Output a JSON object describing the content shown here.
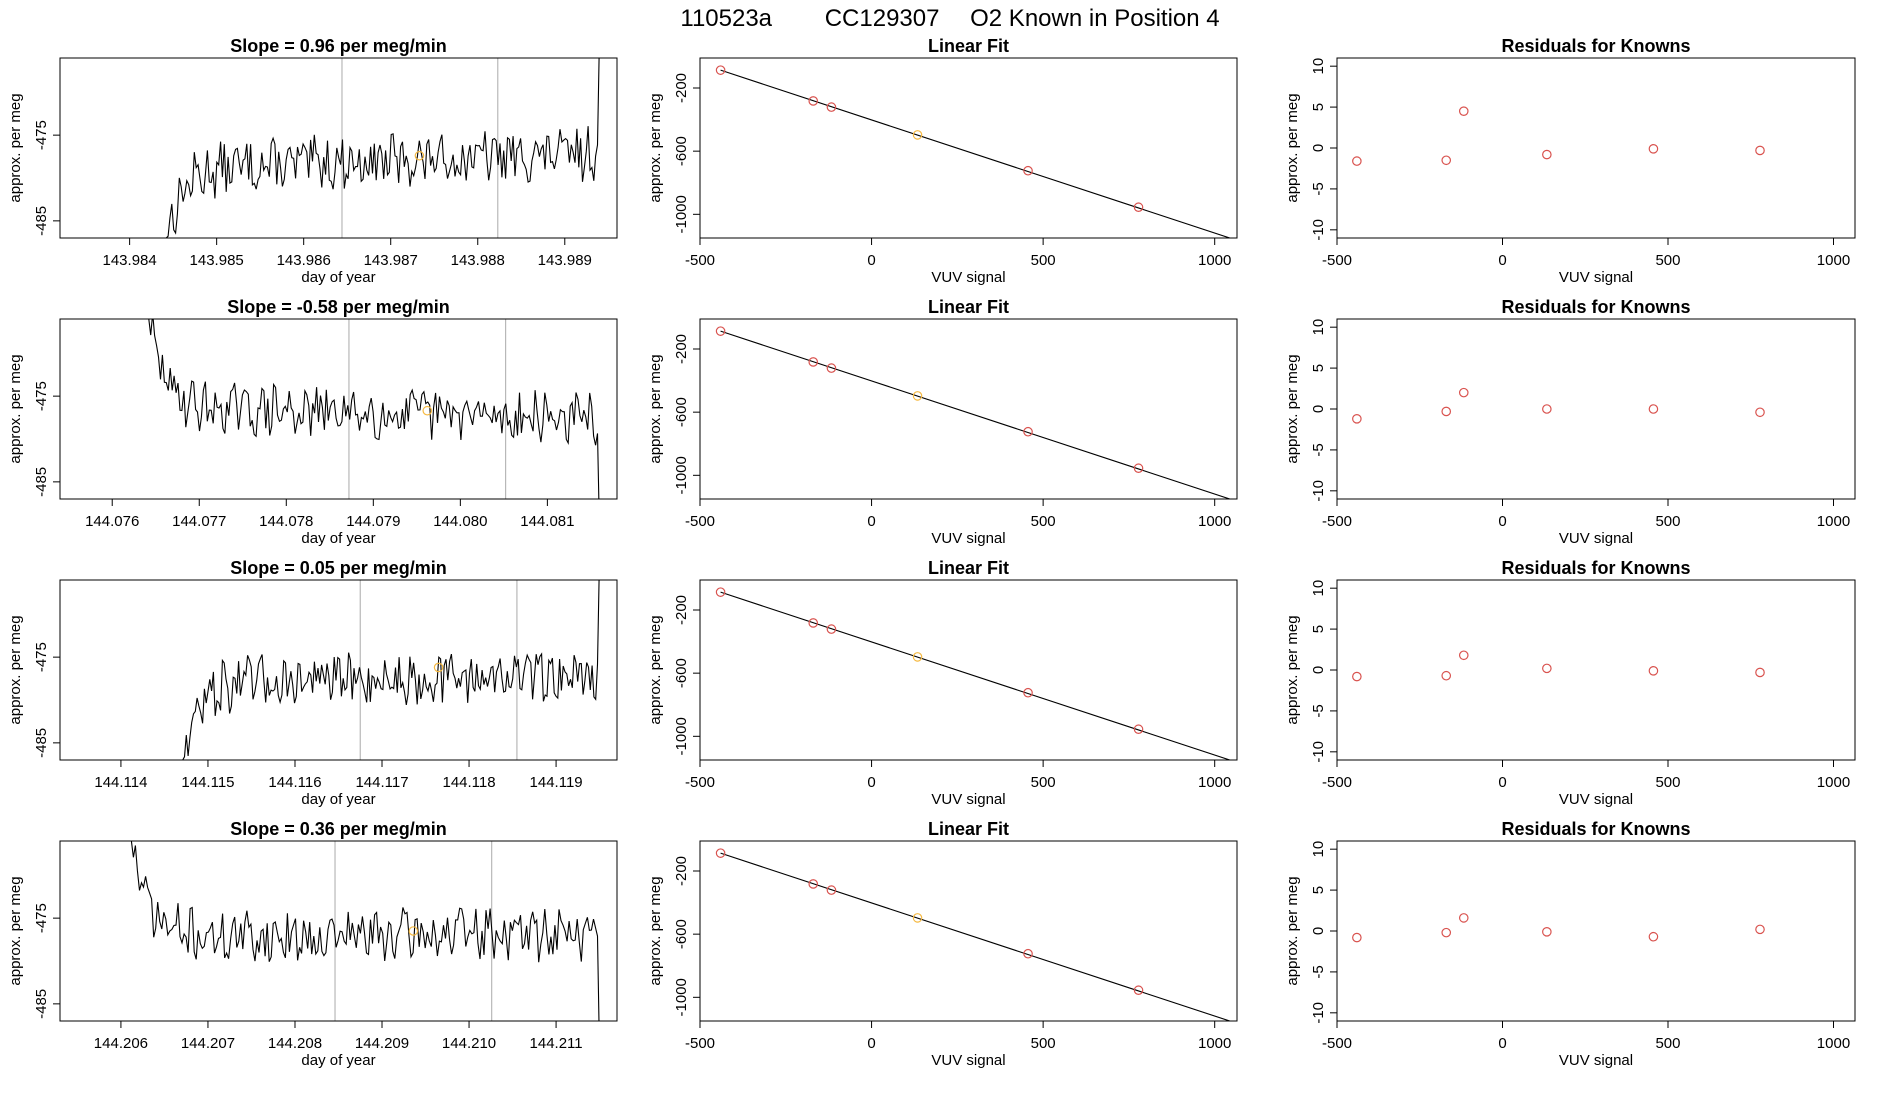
{
  "page": {
    "title_parts": [
      "110523a",
      "CC129307",
      "O2 Known in Position  4"
    ]
  },
  "chart_data": [
    {
      "type": "line",
      "row": 1,
      "title": "Slope =  0.96  per meg/min",
      "xlabel": "day of year",
      "ylabel": "approx. per meg",
      "xlim": [
        143.9832,
        143.9896
      ],
      "ylim": [
        -487,
        -466
      ],
      "xticks": [
        "143.984",
        "143.985",
        "143.986",
        "143.987",
        "143.988",
        "143.989"
      ],
      "yticks": [
        "-475",
        "-485"
      ],
      "vlines": [
        143.98644,
        143.98823
      ],
      "marker": {
        "x": 143.98733,
        "y": -477.4
      },
      "series_seed": 13,
      "start": {
        "x": 143.98442,
        "y": -487
      },
      "level": -478.0,
      "trend": 0.9,
      "drop_amp": 4,
      "end_dir": "up"
    },
    {
      "type": "scatter",
      "row": 1,
      "title": "Linear Fit",
      "xlabel": "VUV signal",
      "ylabel": "approx. per meg",
      "xlim": [
        -500,
        1065
      ],
      "ylim": [
        -1150,
        -10
      ],
      "xticks": [
        "-500",
        "0",
        "500",
        "1000"
      ],
      "yticks": [
        "-200",
        "-600",
        "-1000"
      ],
      "points": [
        [
          -440,
          -87
        ],
        [
          -170,
          -282
        ],
        [
          -117,
          -321
        ],
        [
          134,
          -497
        ],
        [
          456,
          -724
        ],
        [
          778,
          -955
        ]
      ],
      "highlight_index": 3,
      "fit": [
        [
          -440,
          -87
        ],
        [
          1055,
          -1158
        ]
      ]
    },
    {
      "type": "scatter",
      "row": 1,
      "title": "Residuals for Knowns",
      "xlabel": "VUV signal",
      "ylabel": "approx. per meg",
      "xlim": [
        -500,
        1065
      ],
      "ylim": [
        -11,
        11
      ],
      "xticks": [
        "-500",
        "0",
        "500",
        "1000"
      ],
      "yticks": [
        "10",
        "5",
        "0",
        "-5",
        "-10"
      ],
      "points": [
        [
          -440,
          -1.6
        ],
        [
          -170,
          -1.5
        ],
        [
          -117,
          4.5
        ],
        [
          134,
          -0.8
        ],
        [
          456,
          -0.1
        ],
        [
          778,
          -0.3
        ]
      ]
    },
    {
      "type": "line",
      "row": 2,
      "title": "Slope =  -0.58  per meg/min",
      "xlabel": "day of year",
      "ylabel": "approx. per meg",
      "xlim": [
        144.0754,
        144.0818
      ],
      "ylim": [
        -487,
        -466
      ],
      "xticks": [
        "144.076",
        "144.077",
        "144.078",
        "144.079",
        "144.080",
        "144.081"
      ],
      "yticks": [
        "-475",
        "-485"
      ],
      "vlines": [
        144.07872,
        144.08052
      ],
      "marker": {
        "x": 144.07962,
        "y": -476.7
      },
      "series_seed": 29,
      "start": {
        "x": 144.07642,
        "y": -466
      },
      "level": -477.0,
      "trend": -0.6,
      "drop_amp": 4,
      "end_dir": "down"
    },
    {
      "type": "scatter",
      "row": 2,
      "title": "Linear Fit",
      "xlabel": "VUV signal",
      "ylabel": "approx. per meg",
      "xlim": [
        -500,
        1065
      ],
      "ylim": [
        -1150,
        -10
      ],
      "xticks": [
        "-500",
        "0",
        "500",
        "1000"
      ],
      "yticks": [
        "-200",
        "-600",
        "-1000"
      ],
      "points": [
        [
          -440,
          -87
        ],
        [
          -170,
          -282
        ],
        [
          -117,
          -321
        ],
        [
          134,
          -497
        ],
        [
          456,
          -724
        ],
        [
          778,
          -955
        ]
      ],
      "highlight_index": 3,
      "fit": [
        [
          -440,
          -87
        ],
        [
          1055,
          -1158
        ]
      ]
    },
    {
      "type": "scatter",
      "row": 2,
      "title": "Residuals for Knowns",
      "xlabel": "VUV signal",
      "ylabel": "approx. per meg",
      "xlim": [
        -500,
        1065
      ],
      "ylim": [
        -11,
        11
      ],
      "xticks": [
        "-500",
        "0",
        "500",
        "1000"
      ],
      "yticks": [
        "10",
        "5",
        "0",
        "-5",
        "-10"
      ],
      "points": [
        [
          -440,
          -1.2
        ],
        [
          -170,
          -0.3
        ],
        [
          -117,
          2.0
        ],
        [
          134,
          0.0
        ],
        [
          456,
          0.0
        ],
        [
          778,
          -0.4
        ]
      ]
    },
    {
      "type": "line",
      "row": 3,
      "title": "Slope =  0.05  per meg/min",
      "xlabel": "day of year",
      "ylabel": "approx. per meg",
      "xlim": [
        144.1133,
        144.1197
      ],
      "ylim": [
        -487,
        -466
      ],
      "xticks": [
        "144.114",
        "144.115",
        "144.116",
        "144.117",
        "144.118",
        "144.119"
      ],
      "yticks": [
        "-475",
        "-485"
      ],
      "vlines": [
        144.11675,
        144.11855
      ],
      "marker": {
        "x": 144.11765,
        "y": -476.2
      },
      "series_seed": 47,
      "start": {
        "x": 144.11471,
        "y": -487
      },
      "level": -477.5,
      "trend": 0.6,
      "drop_amp": 4,
      "end_dir": "up"
    },
    {
      "type": "scatter",
      "row": 3,
      "title": "Linear Fit",
      "xlabel": "VUV signal",
      "ylabel": "approx. per meg",
      "xlim": [
        -500,
        1065
      ],
      "ylim": [
        -1150,
        -10
      ],
      "xticks": [
        "-500",
        "0",
        "500",
        "1000"
      ],
      "yticks": [
        "-200",
        "-600",
        "-1000"
      ],
      "points": [
        [
          -440,
          -87
        ],
        [
          -170,
          -282
        ],
        [
          -117,
          -321
        ],
        [
          134,
          -497
        ],
        [
          456,
          -724
        ],
        [
          778,
          -955
        ]
      ],
      "highlight_index": 3,
      "fit": [
        [
          -440,
          -87
        ],
        [
          1055,
          -1158
        ]
      ]
    },
    {
      "type": "scatter",
      "row": 3,
      "title": "Residuals for Knowns",
      "xlabel": "VUV signal",
      "ylabel": "approx. per meg",
      "xlim": [
        -500,
        1065
      ],
      "ylim": [
        -11,
        11
      ],
      "xticks": [
        "-500",
        "0",
        "500",
        "1000"
      ],
      "yticks": [
        "10",
        "5",
        "0",
        "-5",
        "-10"
      ],
      "points": [
        [
          -440,
          -0.8
        ],
        [
          -170,
          -0.7
        ],
        [
          -117,
          1.8
        ],
        [
          134,
          0.2
        ],
        [
          456,
          -0.1
        ],
        [
          778,
          -0.3
        ]
      ]
    },
    {
      "type": "line",
      "row": 4,
      "title": "Slope =  0.36  per meg/min",
      "xlabel": "day of year",
      "ylabel": "approx. per meg",
      "xlim": [
        144.2053,
        144.2117
      ],
      "ylim": [
        -487,
        -466
      ],
      "xticks": [
        "144.206",
        "144.207",
        "144.208",
        "144.209",
        "144.210",
        "144.211"
      ],
      "yticks": [
        "-475",
        "-485"
      ],
      "vlines": [
        144.20846,
        144.21026
      ],
      "marker": {
        "x": 144.20936,
        "y": -476.5
      },
      "series_seed": 71,
      "start": {
        "x": 144.20612,
        "y": -466
      },
      "level": -477.0,
      "trend": 0.3,
      "drop_amp": 4,
      "end_dir": "down"
    },
    {
      "type": "scatter",
      "row": 4,
      "title": "Linear Fit",
      "xlabel": "VUV signal",
      "ylabel": "approx. per meg",
      "xlim": [
        -500,
        1065
      ],
      "ylim": [
        -1150,
        -10
      ],
      "xticks": [
        "-500",
        "0",
        "500",
        "1000"
      ],
      "yticks": [
        "-200",
        "-600",
        "-1000"
      ],
      "points": [
        [
          -440,
          -87
        ],
        [
          -170,
          -282
        ],
        [
          -117,
          -321
        ],
        [
          134,
          -497
        ],
        [
          456,
          -724
        ],
        [
          778,
          -955
        ]
      ],
      "highlight_index": 3,
      "fit": [
        [
          -440,
          -87
        ],
        [
          1055,
          -1158
        ]
      ]
    },
    {
      "type": "scatter",
      "row": 4,
      "title": "Residuals for Knowns",
      "xlabel": "VUV signal",
      "ylabel": "approx. per meg",
      "xlim": [
        -500,
        1065
      ],
      "ylim": [
        -11,
        11
      ],
      "xticks": [
        "-500",
        "0",
        "500",
        "1000"
      ],
      "yticks": [
        "10",
        "5",
        "0",
        "-5",
        "-10"
      ],
      "points": [
        [
          -440,
          -0.8
        ],
        [
          -170,
          -0.2
        ],
        [
          -117,
          1.6
        ],
        [
          134,
          -0.1
        ],
        [
          456,
          -0.7
        ],
        [
          778,
          0.2
        ]
      ]
    }
  ],
  "colors": {
    "line": "#000000",
    "vline": "#b8b8b8",
    "marker_orange": "#f5b942",
    "point_red": "#d9534f",
    "box": "#000000"
  }
}
